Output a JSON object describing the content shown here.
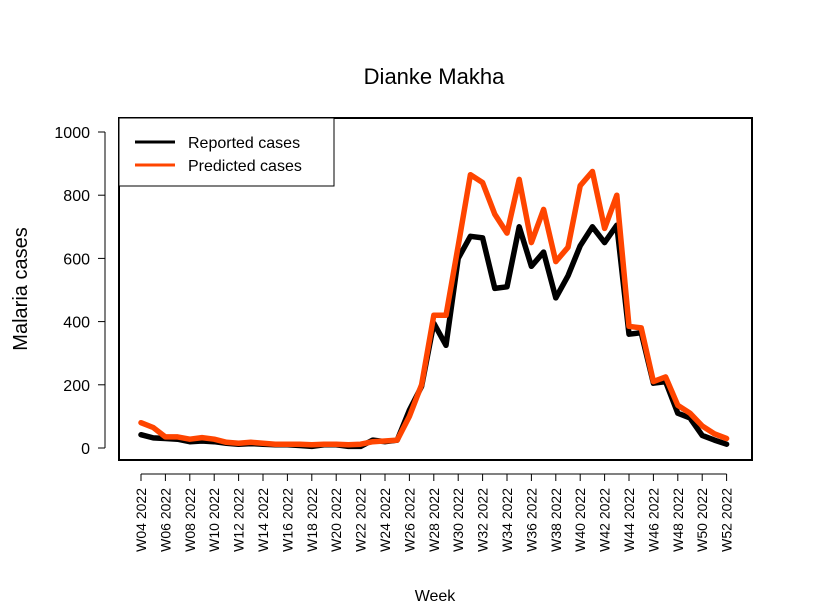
{
  "chart_data": {
    "type": "line",
    "title": "Dianke Makha",
    "xlabel": "Week",
    "ylabel": "Malaria cases",
    "ylim": [
      0,
      1000
    ],
    "yticks": [
      0,
      200,
      400,
      600,
      800,
      1000
    ],
    "grid": false,
    "legend_position": "top-left",
    "x": [
      "W04 2022",
      "W05 2022",
      "W06 2022",
      "W07 2022",
      "W08 2022",
      "W09 2022",
      "W10 2022",
      "W11 2022",
      "W12 2022",
      "W13 2022",
      "W14 2022",
      "W15 2022",
      "W16 2022",
      "W17 2022",
      "W18 2022",
      "W19 2022",
      "W20 2022",
      "W21 2022",
      "W22 2022",
      "W23 2022",
      "W24 2022",
      "W25 2022",
      "W26 2022",
      "W27 2022",
      "W28 2022",
      "W29 2022",
      "W30 2022",
      "W31 2022",
      "W32 2022",
      "W33 2022",
      "W34 2022",
      "W35 2022",
      "W36 2022",
      "W37 2022",
      "W38 2022",
      "W39 2022",
      "W40 2022",
      "W41 2022",
      "W42 2022",
      "W43 2022",
      "W44 2022",
      "W45 2022",
      "W46 2022",
      "W47 2022",
      "W48 2022",
      "W49 2022",
      "W50 2022",
      "W51 2022",
      "W52 2022"
    ],
    "xtick_labels": [
      "W04 2022",
      "W06 2022",
      "W08 2022",
      "W10 2022",
      "W12 2022",
      "W14 2022",
      "W16 2022",
      "W18 2022",
      "W20 2022",
      "W22 2022",
      "W24 2022",
      "W26 2022",
      "W28 2022",
      "W30 2022",
      "W32 2022",
      "W34 2022",
      "W36 2022",
      "W38 2022",
      "W40 2022",
      "W42 2022",
      "W44 2022",
      "W46 2022",
      "W48 2022",
      "W50 2022",
      "W52 2022"
    ],
    "series": [
      {
        "name": "Reported cases",
        "color": "#000000",
        "values": [
          42,
          32,
          30,
          28,
          20,
          22,
          20,
          15,
          12,
          14,
          12,
          10,
          10,
          8,
          5,
          10,
          10,
          5,
          5,
          25,
          20,
          25,
          120,
          195,
          395,
          325,
          600,
          670,
          665,
          505,
          510,
          700,
          575,
          620,
          475,
          545,
          640,
          700,
          650,
          705,
          360,
          365,
          205,
          210,
          110,
          95,
          40,
          25,
          12
        ]
      },
      {
        "name": "Predicted cases",
        "color": "#FF4500",
        "values": [
          80,
          65,
          35,
          35,
          28,
          33,
          28,
          18,
          15,
          18,
          15,
          12,
          12,
          12,
          10,
          12,
          12,
          10,
          12,
          20,
          22,
          25,
          100,
          200,
          420,
          420,
          640,
          865,
          840,
          740,
          680,
          850,
          650,
          755,
          590,
          635,
          830,
          875,
          695,
          800,
          385,
          380,
          210,
          225,
          135,
          110,
          70,
          45,
          30
        ]
      }
    ]
  }
}
